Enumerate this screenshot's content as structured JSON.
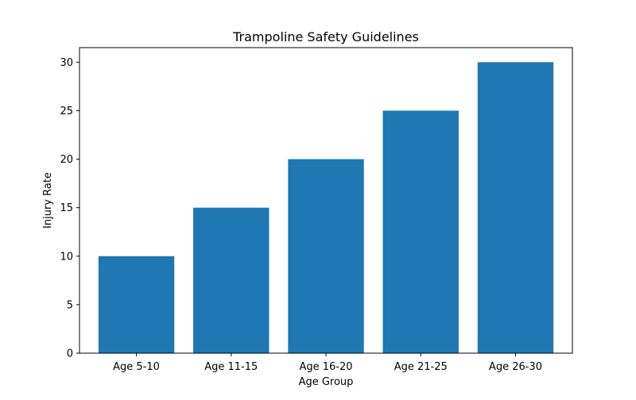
{
  "chart_data": {
    "type": "bar",
    "title": "Trampoline Safety Guidelines",
    "xlabel": "Age Group",
    "ylabel": "Injury Rate",
    "categories": [
      "Age 5-10",
      "Age 11-15",
      "Age 16-20",
      "Age 21-25",
      "Age 26-30"
    ],
    "values": [
      10,
      15,
      20,
      25,
      30
    ],
    "ylim": [
      0,
      31.5
    ],
    "yticks": [
      0,
      5,
      10,
      15,
      20,
      25,
      30
    ],
    "grid": false,
    "legend": "none",
    "colors": {
      "bar": "#1f77b4",
      "axis": "#000000",
      "text": "#000000"
    }
  }
}
